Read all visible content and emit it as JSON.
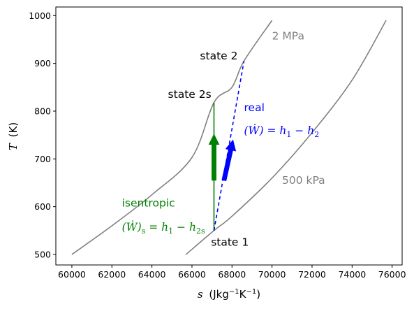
{
  "chart_data": {
    "type": "line",
    "xlabel": {
      "var": "s",
      "unit": "(Jkg",
      "exp1": "−1",
      "unit2": "K",
      "exp2": "−1",
      "close": ")"
    },
    "ylabel": {
      "var": "T",
      "unit": "(K)"
    },
    "xlim": [
      59200,
      76500
    ],
    "ylim": [
      478,
      1018
    ],
    "xticks": [
      60000,
      62000,
      64000,
      66000,
      68000,
      70000,
      72000,
      74000,
      76000
    ],
    "yticks": [
      500,
      600,
      700,
      800,
      900,
      1000
    ],
    "series": [
      {
        "name": "2 MPa",
        "color": "#808080",
        "x": [
          60000,
          62000,
          64000,
          66000,
          67100,
          68000,
          68600,
          70000
        ],
        "y": [
          500,
          560,
          625,
          703,
          818,
          850,
          905,
          990
        ]
      },
      {
        "name": "500 kPa",
        "color": "#808080",
        "x": [
          65700,
          67100,
          68000,
          70000,
          72000,
          74000,
          75700
        ],
        "y": [
          500,
          550,
          580,
          660,
          755,
          865,
          990
        ]
      },
      {
        "name": "",
        "color": "#008000",
        "style": "solid",
        "x": [
          67100,
          67100
        ],
        "y": [
          550,
          818
        ]
      },
      {
        "name": "",
        "color": "#0000ff",
        "style": "dashed",
        "x": [
          67100,
          68600
        ],
        "y": [
          550,
          905
        ]
      }
    ],
    "arrows": [
      {
        "color": "#008000",
        "x": [
          67100,
          67100
        ],
        "y": [
          655,
          752
        ]
      },
      {
        "color": "#0000ff",
        "x": [
          67600,
          68050
        ],
        "y": [
          655,
          740
        ]
      }
    ],
    "annotations": {
      "state1": {
        "text": "state 1",
        "x": 66950,
        "y": 518,
        "color": "#000000"
      },
      "state2": {
        "text": "state 2",
        "x": 66400,
        "y": 908,
        "color": "#000000"
      },
      "state2s": {
        "text": "state 2s",
        "x": 64800,
        "y": 828,
        "color": "#000000"
      },
      "p_high": {
        "text": "2 MPa",
        "x": 70000,
        "y": 950,
        "color": "#808080"
      },
      "p_low": {
        "text": "500 kPa",
        "x": 70500,
        "y": 648,
        "color": "#808080"
      },
      "real": {
        "text": "real",
        "x": 68600,
        "y": 800,
        "color": "#0000ff"
      },
      "real_eq": {
        "text": "(Ẇ) = h",
        "sub1": "1",
        "mid": " − h",
        "sub2": "2",
        "x": 68600,
        "y": 752,
        "color": "#0000ff"
      },
      "isentropic": {
        "text": "isentropic",
        "x": 62500,
        "y": 600,
        "color": "#008000"
      },
      "isen_eq": {
        "text": "(Ẇ)",
        "sub0": "s",
        "mid0": " = h",
        "sub1": "1",
        "mid": " − h",
        "sub2": "2s",
        "x": 62500,
        "y": 550,
        "color": "#008000"
      }
    }
  }
}
